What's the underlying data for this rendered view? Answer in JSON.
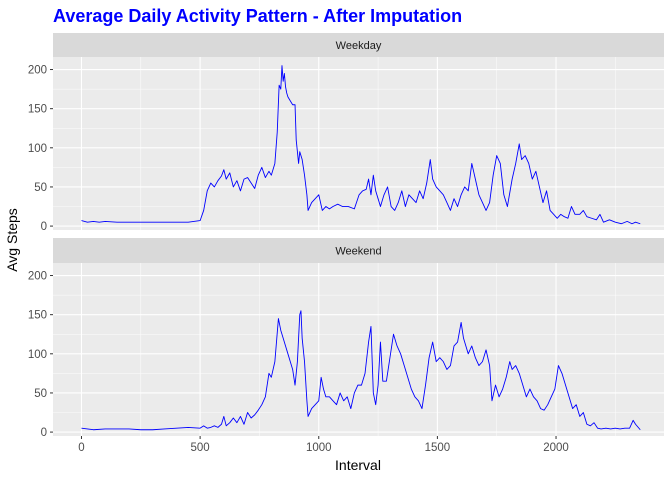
{
  "chart_data": {
    "type": "line",
    "title": "Average Daily Activity Pattern - After Imputation",
    "xlabel": "Interval",
    "ylabel": "Avg Steps",
    "xlim": [
      -120,
      2455
    ],
    "ylim": [
      -5,
      216
    ],
    "xticks": [
      0,
      500,
      1000,
      1500,
      2000
    ],
    "yticks": [
      0,
      50,
      100,
      150,
      200
    ],
    "grid": true,
    "legend": "none",
    "colors": {
      "line": "#0000ff",
      "title": "#0000ff",
      "panel_bg": "#ebebeb",
      "strip_bg": "#d9d9d9",
      "grid": "#ffffff"
    },
    "panels": [
      {
        "label": "Weekday",
        "points": [
          [
            0,
            7
          ],
          [
            25,
            5
          ],
          [
            50,
            6
          ],
          [
            75,
            5
          ],
          [
            100,
            6
          ],
          [
            150,
            5
          ],
          [
            200,
            5
          ],
          [
            250,
            5
          ],
          [
            300,
            5
          ],
          [
            350,
            5
          ],
          [
            400,
            5
          ],
          [
            450,
            5
          ],
          [
            500,
            7
          ],
          [
            515,
            20
          ],
          [
            530,
            45
          ],
          [
            545,
            55
          ],
          [
            560,
            50
          ],
          [
            575,
            58
          ],
          [
            590,
            64
          ],
          [
            600,
            72
          ],
          [
            610,
            60
          ],
          [
            625,
            68
          ],
          [
            640,
            50
          ],
          [
            655,
            58
          ],
          [
            670,
            45
          ],
          [
            685,
            60
          ],
          [
            700,
            62
          ],
          [
            715,
            55
          ],
          [
            730,
            48
          ],
          [
            745,
            65
          ],
          [
            760,
            75
          ],
          [
            775,
            62
          ],
          [
            790,
            70
          ],
          [
            800,
            65
          ],
          [
            815,
            80
          ],
          [
            825,
            120
          ],
          [
            833,
            180
          ],
          [
            840,
            175
          ],
          [
            845,
            205
          ],
          [
            850,
            185
          ],
          [
            855,
            195
          ],
          [
            860,
            178
          ],
          [
            865,
            170
          ],
          [
            870,
            165
          ],
          [
            880,
            160
          ],
          [
            890,
            155
          ],
          [
            900,
            155
          ],
          [
            905,
            110
          ],
          [
            915,
            80
          ],
          [
            920,
            95
          ],
          [
            930,
            85
          ],
          [
            940,
            65
          ],
          [
            950,
            40
          ],
          [
            955,
            20
          ],
          [
            970,
            30
          ],
          [
            985,
            35
          ],
          [
            1000,
            40
          ],
          [
            1015,
            20
          ],
          [
            1030,
            25
          ],
          [
            1045,
            22
          ],
          [
            1060,
            25
          ],
          [
            1080,
            28
          ],
          [
            1100,
            25
          ],
          [
            1125,
            25
          ],
          [
            1150,
            22
          ],
          [
            1170,
            40
          ],
          [
            1185,
            45
          ],
          [
            1200,
            47
          ],
          [
            1210,
            60
          ],
          [
            1220,
            40
          ],
          [
            1230,
            65
          ],
          [
            1240,
            45
          ],
          [
            1250,
            35
          ],
          [
            1260,
            25
          ],
          [
            1275,
            40
          ],
          [
            1290,
            50
          ],
          [
            1305,
            25
          ],
          [
            1320,
            20
          ],
          [
            1335,
            30
          ],
          [
            1350,
            45
          ],
          [
            1365,
            25
          ],
          [
            1380,
            40
          ],
          [
            1395,
            35
          ],
          [
            1410,
            30
          ],
          [
            1425,
            45
          ],
          [
            1440,
            35
          ],
          [
            1455,
            55
          ],
          [
            1470,
            85
          ],
          [
            1480,
            60
          ],
          [
            1495,
            50
          ],
          [
            1510,
            45
          ],
          [
            1525,
            40
          ],
          [
            1540,
            30
          ],
          [
            1555,
            20
          ],
          [
            1570,
            35
          ],
          [
            1585,
            25
          ],
          [
            1600,
            40
          ],
          [
            1615,
            50
          ],
          [
            1630,
            45
          ],
          [
            1645,
            80
          ],
          [
            1660,
            60
          ],
          [
            1675,
            40
          ],
          [
            1690,
            30
          ],
          [
            1705,
            20
          ],
          [
            1720,
            30
          ],
          [
            1735,
            65
          ],
          [
            1750,
            90
          ],
          [
            1765,
            80
          ],
          [
            1780,
            40
          ],
          [
            1795,
            25
          ],
          [
            1815,
            60
          ],
          [
            1830,
            80
          ],
          [
            1845,
            105
          ],
          [
            1855,
            85
          ],
          [
            1870,
            90
          ],
          [
            1885,
            80
          ],
          [
            1900,
            60
          ],
          [
            1915,
            70
          ],
          [
            1930,
            50
          ],
          [
            1945,
            30
          ],
          [
            1960,
            45
          ],
          [
            1975,
            20
          ],
          [
            1990,
            15
          ],
          [
            2005,
            10
          ],
          [
            2020,
            15
          ],
          [
            2035,
            12
          ],
          [
            2050,
            10
          ],
          [
            2065,
            25
          ],
          [
            2080,
            15
          ],
          [
            2100,
            15
          ],
          [
            2115,
            20
          ],
          [
            2130,
            12
          ],
          [
            2150,
            10
          ],
          [
            2170,
            8
          ],
          [
            2185,
            15
          ],
          [
            2200,
            5
          ],
          [
            2225,
            8
          ],
          [
            2250,
            5
          ],
          [
            2275,
            3
          ],
          [
            2300,
            6
          ],
          [
            2320,
            3
          ],
          [
            2335,
            5
          ],
          [
            2355,
            3
          ]
        ]
      },
      {
        "label": "Weekend",
        "points": [
          [
            0,
            5
          ],
          [
            25,
            4
          ],
          [
            50,
            3
          ],
          [
            100,
            4
          ],
          [
            150,
            4
          ],
          [
            200,
            4
          ],
          [
            250,
            3
          ],
          [
            300,
            3
          ],
          [
            350,
            4
          ],
          [
            400,
            5
          ],
          [
            450,
            6
          ],
          [
            500,
            5
          ],
          [
            515,
            8
          ],
          [
            530,
            5
          ],
          [
            545,
            6
          ],
          [
            560,
            8
          ],
          [
            575,
            6
          ],
          [
            590,
            10
          ],
          [
            600,
            20
          ],
          [
            610,
            8
          ],
          [
            625,
            12
          ],
          [
            640,
            18
          ],
          [
            655,
            12
          ],
          [
            670,
            20
          ],
          [
            685,
            10
          ],
          [
            700,
            25
          ],
          [
            715,
            18
          ],
          [
            730,
            22
          ],
          [
            745,
            28
          ],
          [
            760,
            35
          ],
          [
            775,
            45
          ],
          [
            790,
            75
          ],
          [
            800,
            70
          ],
          [
            815,
            90
          ],
          [
            830,
            145
          ],
          [
            840,
            130
          ],
          [
            850,
            120
          ],
          [
            860,
            110
          ],
          [
            870,
            100
          ],
          [
            880,
            90
          ],
          [
            890,
            80
          ],
          [
            900,
            60
          ],
          [
            910,
            90
          ],
          [
            920,
            150
          ],
          [
            925,
            155
          ],
          [
            930,
            120
          ],
          [
            940,
            90
          ],
          [
            950,
            40
          ],
          [
            955,
            20
          ],
          [
            970,
            30
          ],
          [
            985,
            35
          ],
          [
            1000,
            40
          ],
          [
            1010,
            70
          ],
          [
            1020,
            55
          ],
          [
            1030,
            45
          ],
          [
            1045,
            45
          ],
          [
            1060,
            40
          ],
          [
            1075,
            35
          ],
          [
            1090,
            50
          ],
          [
            1105,
            40
          ],
          [
            1120,
            45
          ],
          [
            1135,
            30
          ],
          [
            1150,
            50
          ],
          [
            1165,
            60
          ],
          [
            1180,
            60
          ],
          [
            1195,
            75
          ],
          [
            1210,
            115
          ],
          [
            1220,
            135
          ],
          [
            1230,
            50
          ],
          [
            1240,
            35
          ],
          [
            1250,
            60
          ],
          [
            1260,
            115
          ],
          [
            1270,
            65
          ],
          [
            1285,
            65
          ],
          [
            1300,
            95
          ],
          [
            1315,
            125
          ],
          [
            1330,
            110
          ],
          [
            1345,
            100
          ],
          [
            1360,
            85
          ],
          [
            1375,
            70
          ],
          [
            1390,
            55
          ],
          [
            1405,
            45
          ],
          [
            1420,
            40
          ],
          [
            1435,
            30
          ],
          [
            1450,
            60
          ],
          [
            1465,
            95
          ],
          [
            1480,
            115
          ],
          [
            1495,
            90
          ],
          [
            1510,
            95
          ],
          [
            1525,
            90
          ],
          [
            1540,
            80
          ],
          [
            1555,
            85
          ],
          [
            1570,
            110
          ],
          [
            1585,
            115
          ],
          [
            1600,
            140
          ],
          [
            1610,
            120
          ],
          [
            1620,
            110
          ],
          [
            1630,
            100
          ],
          [
            1645,
            110
          ],
          [
            1660,
            95
          ],
          [
            1675,
            85
          ],
          [
            1690,
            90
          ],
          [
            1705,
            105
          ],
          [
            1720,
            85
          ],
          [
            1730,
            40
          ],
          [
            1745,
            60
          ],
          [
            1760,
            45
          ],
          [
            1775,
            55
          ],
          [
            1790,
            70
          ],
          [
            1805,
            90
          ],
          [
            1815,
            80
          ],
          [
            1830,
            85
          ],
          [
            1845,
            75
          ],
          [
            1860,
            60
          ],
          [
            1875,
            45
          ],
          [
            1890,
            55
          ],
          [
            1905,
            45
          ],
          [
            1920,
            40
          ],
          [
            1935,
            30
          ],
          [
            1950,
            28
          ],
          [
            1965,
            35
          ],
          [
            1980,
            45
          ],
          [
            1995,
            55
          ],
          [
            2010,
            85
          ],
          [
            2025,
            75
          ],
          [
            2040,
            60
          ],
          [
            2055,
            45
          ],
          [
            2070,
            30
          ],
          [
            2085,
            35
          ],
          [
            2100,
            20
          ],
          [
            2115,
            25
          ],
          [
            2130,
            10
          ],
          [
            2145,
            8
          ],
          [
            2160,
            12
          ],
          [
            2175,
            5
          ],
          [
            2190,
            4
          ],
          [
            2210,
            5
          ],
          [
            2230,
            4
          ],
          [
            2250,
            5
          ],
          [
            2270,
            4
          ],
          [
            2290,
            5
          ],
          [
            2310,
            5
          ],
          [
            2325,
            15
          ],
          [
            2335,
            10
          ],
          [
            2355,
            3
          ]
        ]
      }
    ]
  }
}
